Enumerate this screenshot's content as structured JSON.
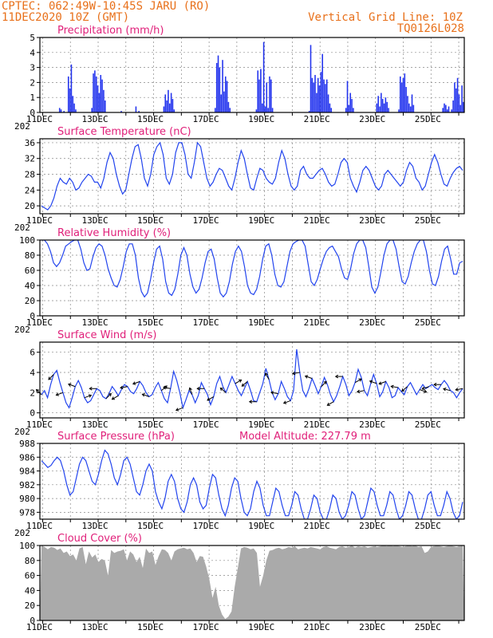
{
  "header": {
    "left_line1": "CPTEC:  062:49W-10:45S  JARU (RO)",
    "left_line2": "11DEC2020 10Z (GMT)",
    "right_line1": "Vertical Grid Line: 10Z",
    "right_line2": "TQ0126L028"
  },
  "colors": {
    "header": "#e8701a",
    "title": "#e0207a",
    "series": "#2244ee",
    "bars": "#2233ee",
    "cloud": "#aaaaaa",
    "grid": "#888888",
    "arrows": "#000000"
  },
  "x_labels": [
    "11DEC",
    "13DEC",
    "15DEC",
    "17DEC",
    "19DEC",
    "21DEC",
    "23DEC",
    "25DEC"
  ],
  "x_year_fragment": "202",
  "chart_data": [
    {
      "id": "precip",
      "type": "bar",
      "title": "Precipitation (mm/h)",
      "ylim": [
        0,
        5
      ],
      "yticks": [
        0,
        1,
        2,
        3,
        4,
        5
      ],
      "grid": true,
      "series": [
        {
          "values": [
            0,
            0,
            0,
            0,
            0,
            0,
            0,
            0,
            0,
            0,
            0,
            0,
            0,
            0.3,
            0.2,
            0,
            0.1,
            0,
            0,
            2.4,
            1.6,
            3.2,
            1.1,
            0.6,
            0.2,
            0,
            0,
            0,
            0,
            0,
            0,
            0,
            0,
            0,
            0,
            0.3,
            2.6,
            2.8,
            2.4,
            1.8,
            1.3,
            2.5,
            2.2,
            1.5,
            0.8,
            0,
            0,
            0,
            0,
            0,
            0,
            0,
            0,
            0,
            0,
            0.1,
            0,
            0,
            0,
            0,
            0,
            0,
            0,
            0,
            0,
            0.4,
            0,
            0.1,
            0,
            0,
            0,
            0,
            0,
            0,
            0,
            0,
            0,
            0,
            0,
            0,
            0,
            0,
            0,
            0,
            0.4,
            1.2,
            0.8,
            1.5,
            0.6,
            1.3,
            0.9,
            0.2,
            0,
            0,
            0,
            0,
            0,
            0,
            0,
            0,
            0,
            0,
            0,
            0,
            0,
            0,
            0,
            0,
            0,
            0,
            0,
            0,
            0,
            0,
            0,
            0,
            0,
            0,
            0,
            0.3,
            3.3,
            3.8,
            3.0,
            1.2,
            3.5,
            1.4,
            2.4,
            2.1,
            0.7,
            0.3,
            0,
            0,
            0,
            0,
            0,
            0,
            0,
            0,
            0,
            0,
            0,
            0,
            0,
            0,
            0,
            0,
            0,
            0.2,
            2.8,
            2.2,
            2.9,
            0.6,
            4.7,
            0.4,
            2.0,
            0.3,
            2.4,
            2.2,
            0.3,
            0,
            0,
            0,
            0,
            0,
            0,
            0,
            0,
            0,
            0,
            0,
            0,
            0,
            0,
            0,
            0,
            0,
            0,
            0,
            0,
            0,
            0,
            0,
            0,
            0.1,
            4.5,
            2.3,
            2.0,
            2.5,
            1.3,
            2.3,
            1.8,
            2.7,
            3.9,
            2.2,
            1.9,
            2.2,
            1.2,
            0.6,
            0.3,
            0,
            0,
            0,
            0,
            0,
            0,
            0,
            0,
            0,
            0.3,
            2.1,
            0.5,
            1.3,
            0.9,
            0.3,
            0,
            0,
            0,
            0,
            0,
            0,
            0,
            0,
            0,
            0,
            0,
            0,
            0,
            0,
            0,
            0.6,
            1.1,
            0.4,
            1.3,
            0.9,
            0.6,
            1.0,
            0.7,
            0.3,
            0,
            0,
            0,
            0,
            0,
            0,
            0.2,
            2.4,
            2.0,
            2.3,
            2.6,
            1.7,
            1.1,
            0.6,
            0.4,
            1.2,
            0.5,
            0,
            0,
            0,
            0,
            0,
            0,
            0,
            0,
            0,
            0,
            0,
            0,
            0,
            0,
            0,
            0,
            0,
            0,
            0,
            0.3,
            0.6,
            0.5,
            0.2,
            0.4,
            0,
            0.2,
            0.8,
            2.0,
            1.6,
            2.3,
            1.2,
            0.5,
            1.8,
            0.7
          ]
        }
      ]
    },
    {
      "id": "temp",
      "type": "line",
      "title": "Surface Temperature (nC)",
      "ylim": [
        18,
        37
      ],
      "yticks": [
        20,
        24,
        28,
        32,
        36
      ],
      "grid": true,
      "series": [
        {
          "values": [
            20,
            19.5,
            19,
            20,
            22,
            25,
            27,
            26,
            25.5,
            27,
            26,
            24,
            24.5,
            26,
            27,
            28,
            27.5,
            26,
            26,
            24.5,
            27,
            31,
            33.5,
            32,
            28,
            25,
            23,
            24,
            28,
            32,
            35,
            35.5,
            32,
            27,
            25,
            28,
            33,
            35,
            36,
            33,
            27,
            25.5,
            28,
            33.5,
            36,
            36,
            33,
            28,
            27,
            31,
            36,
            35,
            31,
            27,
            25,
            26,
            28,
            29.5,
            29,
            27,
            25,
            24,
            27,
            31,
            34,
            32,
            28,
            24.5,
            24,
            27,
            29.5,
            29,
            27,
            26,
            25.5,
            27,
            31,
            34,
            32,
            28,
            25,
            24,
            25,
            29,
            30,
            28,
            27,
            27,
            28,
            29,
            29.5,
            28,
            26,
            25,
            25.5,
            28,
            31,
            32,
            31,
            27,
            25,
            23.5,
            26,
            29,
            30,
            29,
            27,
            25,
            24,
            25,
            28,
            29,
            28,
            27,
            26,
            25,
            26,
            29,
            31,
            30,
            27,
            26,
            24,
            25,
            28,
            31,
            33,
            31,
            28,
            25.5,
            25,
            27,
            28.5,
            29.5,
            30,
            29
          ]
        }
      ]
    },
    {
      "id": "rh",
      "type": "line",
      "title": "Relative Humidity (%)",
      "ylim": [
        0,
        100
      ],
      "yticks": [
        0,
        20,
        40,
        60,
        80,
        100
      ],
      "grid": true,
      "series": [
        {
          "values": [
            100,
            100,
            95,
            85,
            70,
            65,
            70,
            80,
            92,
            95,
            98,
            100,
            100,
            88,
            70,
            60,
            62,
            78,
            90,
            95,
            92,
            80,
            62,
            50,
            40,
            38,
            48,
            65,
            85,
            95,
            95,
            80,
            50,
            32,
            25,
            30,
            48,
            70,
            88,
            92,
            75,
            45,
            30,
            27,
            35,
            55,
            80,
            90,
            80,
            55,
            38,
            30,
            35,
            50,
            70,
            85,
            88,
            75,
            50,
            30,
            25,
            30,
            45,
            68,
            85,
            92,
            85,
            65,
            40,
            30,
            28,
            35,
            52,
            75,
            92,
            95,
            80,
            55,
            40,
            38,
            45,
            65,
            85,
            95,
            98,
            100,
            100,
            92,
            68,
            45,
            40,
            48,
            62,
            75,
            85,
            90,
            92,
            85,
            78,
            62,
            50,
            48,
            62,
            82,
            95,
            100,
            100,
            90,
            65,
            38,
            30,
            38,
            58,
            80,
            95,
            100,
            100,
            88,
            65,
            45,
            42,
            52,
            70,
            85,
            95,
            100,
            100,
            85,
            60,
            42,
            40,
            52,
            72,
            88,
            92,
            75,
            55,
            55,
            70,
            72
          ]
        }
      ]
    },
    {
      "id": "wind",
      "type": "line",
      "title": "Surface Wind (m/s)",
      "ylim": [
        -0.5,
        7
      ],
      "yticks": [
        0,
        2,
        4,
        6
      ],
      "grid": true,
      "series": [
        {
          "values": [
            1.8,
            2.2,
            1.5,
            2.8,
            3.8,
            4.2,
            3.0,
            2.0,
            1.0,
            0.5,
            1.5,
            2.6,
            3.2,
            2.5,
            1.5,
            1.0,
            1.2,
            1.8,
            2.4,
            2.2,
            1.6,
            1.4,
            1.9,
            2.6,
            2.2,
            1.7,
            2.3,
            2.8,
            2.6,
            2.1,
            1.9,
            2.4,
            3.1,
            2.7,
            2.0,
            1.6,
            1.8,
            2.5,
            3.0,
            2.2,
            1.4,
            1.0,
            2.4,
            4.1,
            3.2,
            2.0,
            0.5,
            1.3,
            2.2,
            1.8,
            1.0,
            1.7,
            3.0,
            2.4,
            1.8,
            0.8,
            1.6,
            2.9,
            3.6,
            2.6,
            2.0,
            2.8,
            3.6,
            2.9,
            2.2,
            1.7,
            2.4,
            3.1,
            2.2,
            1.2,
            1.1,
            2.0,
            2.9,
            4.4,
            3.3,
            2.0,
            1.3,
            1.9,
            3.1,
            2.4,
            1.6,
            1.2,
            2.2,
            6.3,
            4.0,
            2.2,
            1.6,
            2.4,
            3.4,
            2.7,
            1.9,
            2.6,
            3.5,
            2.8,
            1.8,
            1.1,
            1.7,
            2.6,
            3.6,
            2.8,
            1.7,
            2.2,
            3.0,
            4.3,
            3.5,
            2.2,
            1.7,
            2.8,
            3.8,
            2.9,
            1.6,
            2.1,
            3.1,
            2.5,
            1.5,
            1.7,
            2.5,
            2.1,
            1.8,
            2.6,
            3.0,
            2.4,
            1.8,
            2.3,
            2.8,
            2.4,
            2.6,
            2.8,
            2.5,
            2.3,
            2.8,
            3.2,
            2.8,
            2.2,
            2.0,
            1.5,
            2.0,
            2.4
          ]
        }
      ],
      "wind_arrows_deg": [
        135,
        225,
        200,
        160,
        20,
        180,
        45,
        210,
        190,
        200,
        160,
        40,
        170,
        200,
        110,
        180,
        210,
        140,
        30,
        220,
        180,
        120,
        170,
        200,
        190,
        160,
        45,
        210,
        180,
        30,
        190,
        160,
        200,
        170,
        220,
        340,
        200,
        180,
        165,
        190
      ]
    },
    {
      "id": "pres",
      "type": "line",
      "title": "Surface Pressure (hPa)",
      "extra_label": "Model Altitude: 227.79 m",
      "ylim": [
        977,
        988
      ],
      "yticks": [
        978,
        980,
        982,
        984,
        986,
        988
      ],
      "grid": true,
      "series": [
        {
          "values": [
            985.5,
            985,
            984.5,
            984.8,
            985.5,
            986,
            985.5,
            984,
            982,
            980.5,
            981,
            983,
            985,
            986,
            985.5,
            984,
            982.5,
            982,
            983.5,
            985.5,
            987,
            986.5,
            985,
            983,
            982,
            983.5,
            985.5,
            986,
            985,
            983,
            981,
            980.5,
            982,
            984,
            985,
            984,
            981,
            979.5,
            978.5,
            980,
            982.5,
            983.5,
            982.5,
            980,
            978.5,
            978,
            979.5,
            982,
            983,
            982,
            979.5,
            978.5,
            979,
            981.5,
            983.5,
            983,
            980.5,
            978.5,
            977.5,
            979,
            981.5,
            983,
            982.5,
            980,
            978,
            977.5,
            978.5,
            981,
            982.5,
            981.5,
            979,
            977.5,
            977.5,
            979.5,
            981.5,
            981,
            979,
            977.5,
            977.5,
            979,
            981,
            980.5,
            978.5,
            977,
            977,
            978.5,
            980.5,
            980,
            978,
            977,
            977,
            978.5,
            980.5,
            980,
            978,
            977,
            977.5,
            979,
            981,
            980.5,
            978.5,
            977,
            977.5,
            979.5,
            981.5,
            981,
            979,
            977.5,
            977.5,
            979,
            981,
            980.5,
            978.5,
            977,
            977.5,
            979,
            981,
            980.5,
            978.5,
            977,
            977,
            978.5,
            980.5,
            981,
            979,
            977.5,
            977.5,
            979,
            981,
            980,
            978,
            977,
            977.5,
            979.5
          ]
        }
      ]
    },
    {
      "id": "cloud",
      "type": "area",
      "title": "Cloud Cover (%)",
      "ylim": [
        0,
        100
      ],
      "yticks": [
        0,
        20,
        40,
        60,
        80,
        100
      ],
      "grid": true,
      "series": [
        {
          "values": [
            100,
            98,
            95,
            98,
            97,
            94,
            96,
            90,
            92,
            86,
            88,
            80,
            96,
            98,
            75,
            92,
            84,
            88,
            78,
            82,
            80,
            60,
            94,
            90,
            92,
            93,
            95,
            80,
            92,
            88,
            78,
            85,
            70,
            96,
            90,
            92,
            74,
            86,
            95,
            94,
            90,
            80,
            92,
            95,
            96,
            97,
            95,
            96,
            90,
            78,
            86,
            85,
            72,
            55,
            30,
            45,
            20,
            8,
            2,
            5,
            12,
            45,
            70,
            96,
            98,
            97,
            95,
            96,
            90,
            45,
            60,
            80,
            93,
            94,
            96,
            97,
            95,
            96,
            98,
            97,
            99,
            95,
            96,
            97,
            96,
            98,
            97,
            96,
            95,
            98,
            99,
            97,
            96,
            95,
            98,
            99,
            97,
            98,
            100,
            97,
            99,
            98,
            99,
            97,
            98,
            99,
            98,
            99,
            100,
            99,
            100,
            99,
            100,
            99,
            98,
            99,
            100,
            99,
            100,
            98,
            99,
            90,
            92,
            98,
            99,
            100,
            99,
            98,
            99,
            100,
            99,
            98,
            99,
            100
          ]
        }
      ]
    }
  ]
}
